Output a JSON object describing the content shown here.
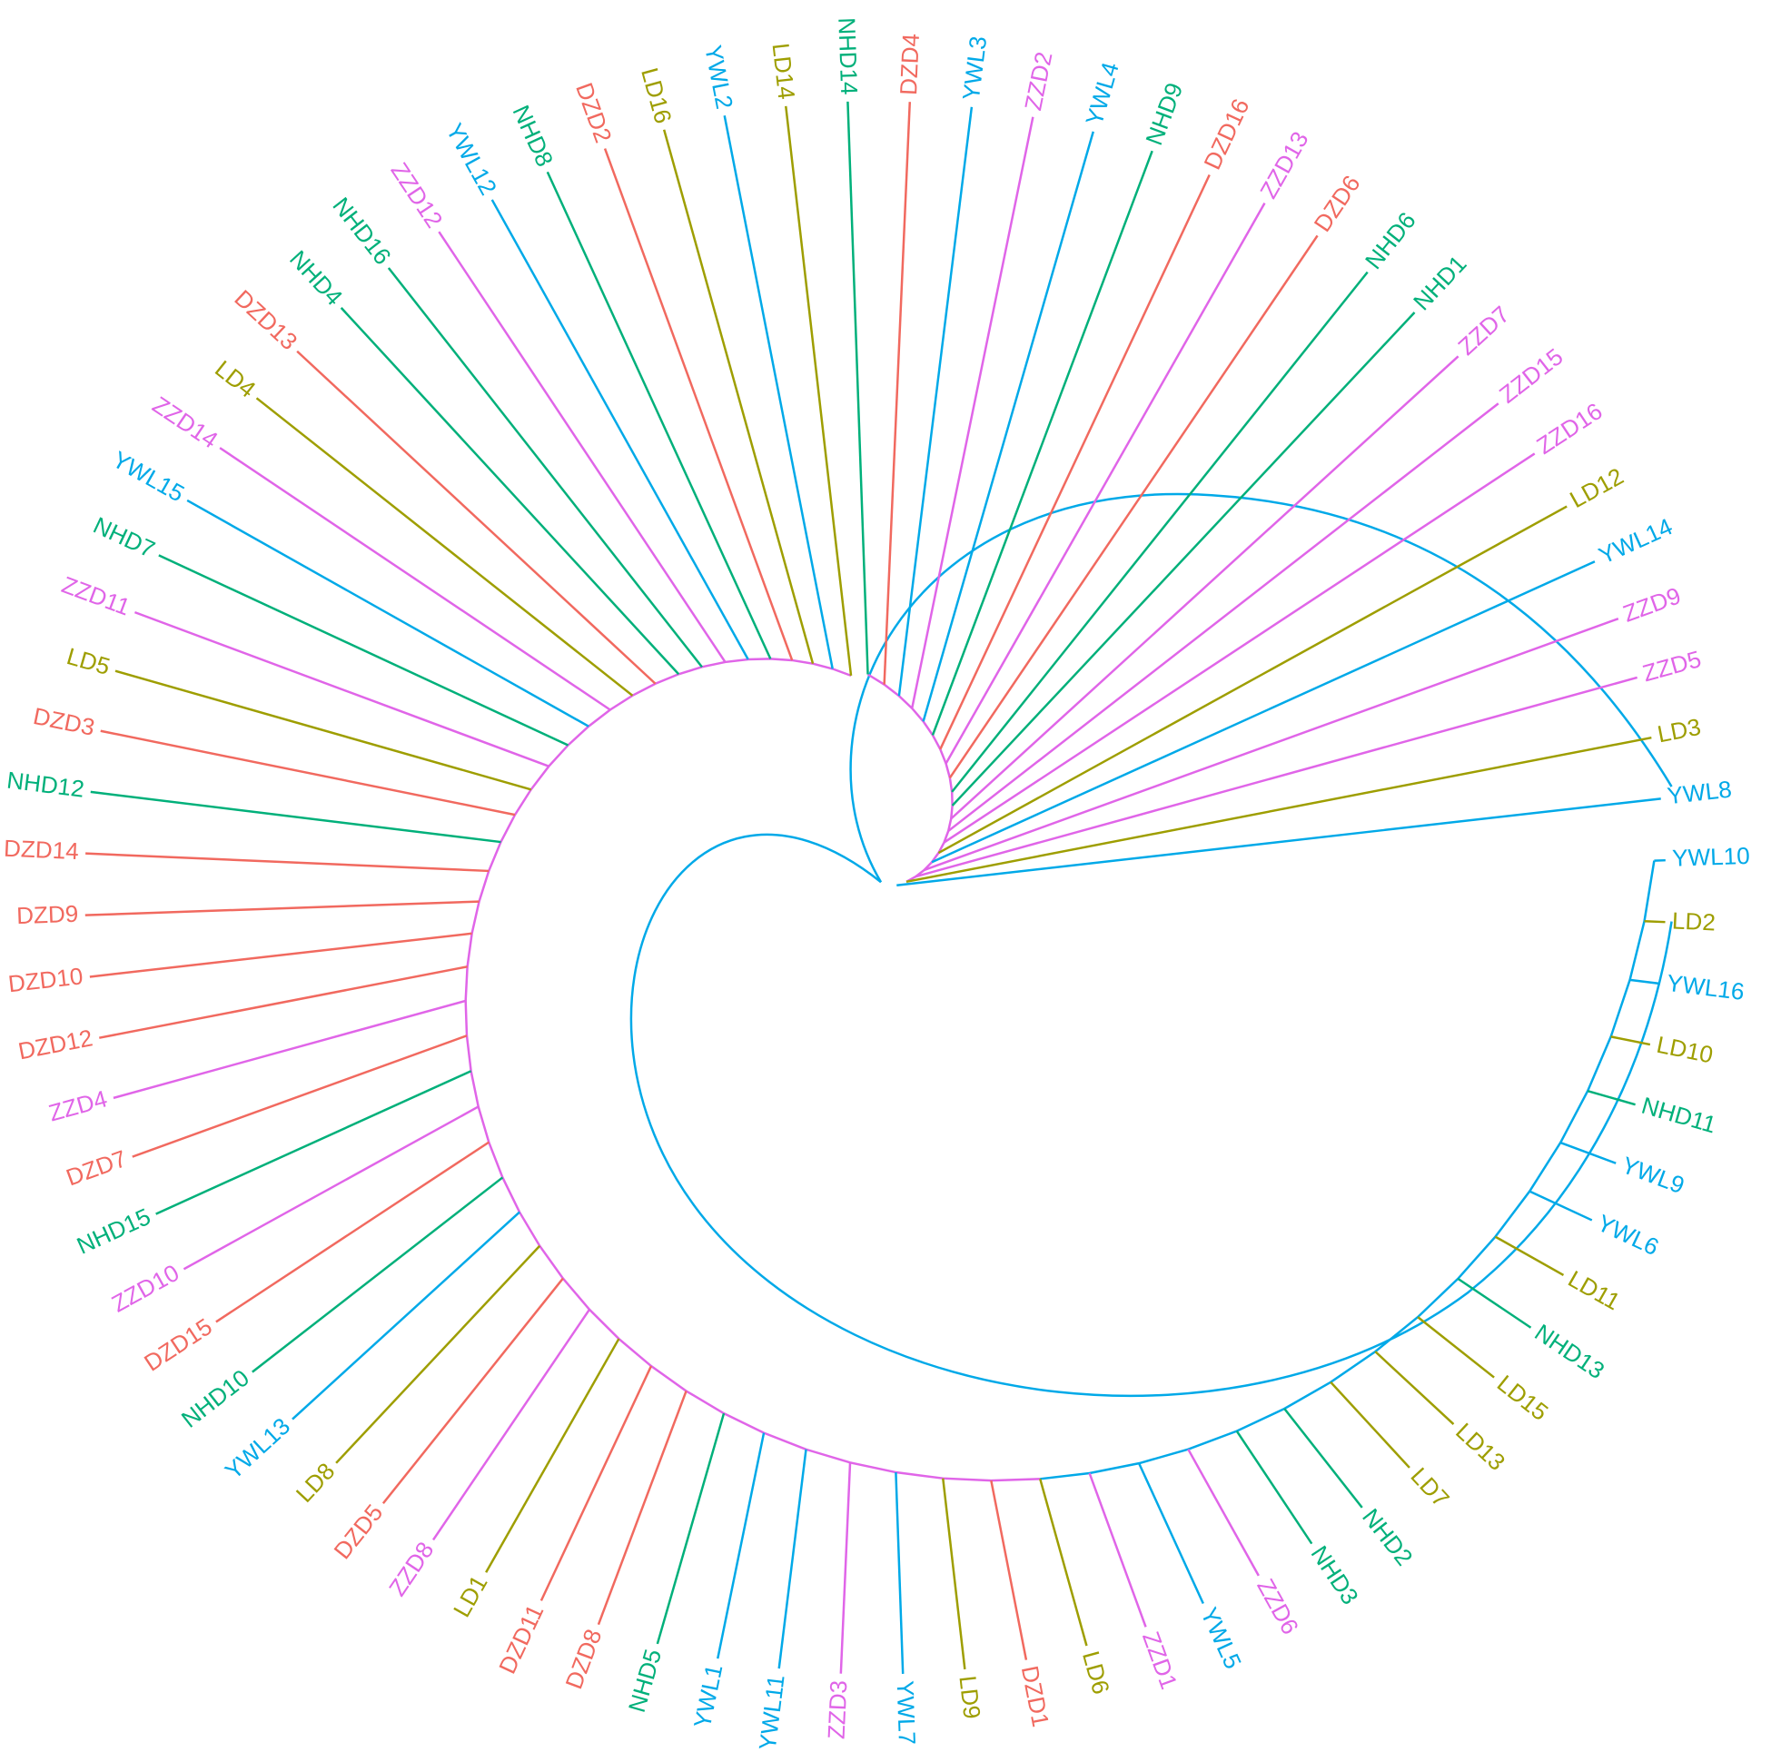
{
  "leaves": [
    {
      "label": "NHD14",
      "color": "#00B07A"
    },
    {
      "label": "DZD4",
      "color": "#F1695F"
    },
    {
      "label": "YWL3",
      "color": "#00A9E8"
    },
    {
      "label": "ZZD2",
      "color": "#E065E8"
    },
    {
      "label": "YWL4",
      "color": "#00A9E8"
    },
    {
      "label": "NHD9",
      "color": "#00B07A"
    },
    {
      "label": "DZD16",
      "color": "#F1695F"
    },
    {
      "label": "ZZD13",
      "color": "#E065E8"
    },
    {
      "label": "DZD6",
      "color": "#F1695F"
    },
    {
      "label": "NHD6",
      "color": "#00B07A"
    },
    {
      "label": "NHD1",
      "color": "#00B07A"
    },
    {
      "label": "ZZD7",
      "color": "#E065E8"
    },
    {
      "label": "ZZD15",
      "color": "#E065E8"
    },
    {
      "label": "ZZD16",
      "color": "#E065E8"
    },
    {
      "label": "LD12",
      "color": "#9E9E00"
    },
    {
      "label": "YWL14",
      "color": "#00A9E8"
    },
    {
      "label": "ZZD9",
      "color": "#E065E8"
    },
    {
      "label": "ZZD5",
      "color": "#E065E8"
    },
    {
      "label": "LD3",
      "color": "#9E9E00"
    },
    {
      "label": "YWL8",
      "color": "#00A9E8"
    },
    {
      "label": "YWL10",
      "color": "#00A9E8"
    },
    {
      "label": "LD2",
      "color": "#9E9E00"
    },
    {
      "label": "YWL16",
      "color": "#00A9E8"
    },
    {
      "label": "LD10",
      "color": "#9E9E00"
    },
    {
      "label": "NHD11",
      "color": "#00B07A"
    },
    {
      "label": "YWL9",
      "color": "#00A9E8"
    },
    {
      "label": "YWL6",
      "color": "#00A9E8"
    },
    {
      "label": "LD11",
      "color": "#9E9E00"
    },
    {
      "label": "NHD13",
      "color": "#00B07A"
    },
    {
      "label": "LD15",
      "color": "#9E9E00"
    },
    {
      "label": "LD13",
      "color": "#9E9E00"
    },
    {
      "label": "LD7",
      "color": "#9E9E00"
    },
    {
      "label": "NHD2",
      "color": "#00B07A"
    },
    {
      "label": "NHD3",
      "color": "#00B07A"
    },
    {
      "label": "ZZD6",
      "color": "#E065E8"
    },
    {
      "label": "YWL5",
      "color": "#00A9E8"
    },
    {
      "label": "ZZD1",
      "color": "#E065E8"
    },
    {
      "label": "LD6",
      "color": "#9E9E00"
    },
    {
      "label": "DZD1",
      "color": "#F1695F"
    },
    {
      "label": "LD9",
      "color": "#9E9E00"
    },
    {
      "label": "YWL7",
      "color": "#00A9E8"
    },
    {
      "label": "ZZD3",
      "color": "#E065E8"
    },
    {
      "label": "YWL11",
      "color": "#00A9E8"
    },
    {
      "label": "YWL1",
      "color": "#00A9E8"
    },
    {
      "label": "NHD5",
      "color": "#00B07A"
    },
    {
      "label": "DZD8",
      "color": "#F1695F"
    },
    {
      "label": "DZD11",
      "color": "#F1695F"
    },
    {
      "label": "LD1",
      "color": "#9E9E00"
    },
    {
      "label": "ZZD8",
      "color": "#E065E8"
    },
    {
      "label": "DZD5",
      "color": "#F1695F"
    },
    {
      "label": "LD8",
      "color": "#9E9E00"
    },
    {
      "label": "YWL13",
      "color": "#00A9E8"
    },
    {
      "label": "NHD10",
      "color": "#00B07A"
    },
    {
      "label": "DZD15",
      "color": "#F1695F"
    },
    {
      "label": "ZZD10",
      "color": "#E065E8"
    },
    {
      "label": "NHD15",
      "color": "#00B07A"
    },
    {
      "label": "DZD7",
      "color": "#F1695F"
    },
    {
      "label": "ZZD4",
      "color": "#E065E8"
    },
    {
      "label": "DZD12",
      "color": "#F1695F"
    },
    {
      "label": "DZD10",
      "color": "#F1695F"
    },
    {
      "label": "DZD9",
      "color": "#F1695F"
    },
    {
      "label": "DZD14",
      "color": "#F1695F"
    },
    {
      "label": "NHD12",
      "color": "#00B07A"
    },
    {
      "label": "DZD3",
      "color": "#F1695F"
    },
    {
      "label": "LD5",
      "color": "#9E9E00"
    },
    {
      "label": "ZZD11",
      "color": "#E065E8"
    },
    {
      "label": "NHD7",
      "color": "#00B07A"
    },
    {
      "label": "YWL15",
      "color": "#00A9E8"
    },
    {
      "label": "ZZD14",
      "color": "#E065E8"
    },
    {
      "label": "LD4",
      "color": "#9E9E00"
    },
    {
      "label": "DZD13",
      "color": "#F1695F"
    },
    {
      "label": "NHD4",
      "color": "#00B07A"
    },
    {
      "label": "NHD16",
      "color": "#00B07A"
    },
    {
      "label": "ZZD12",
      "color": "#E065E8"
    },
    {
      "label": "YWL12",
      "color": "#00A9E8"
    },
    {
      "label": "NHD8",
      "color": "#00B07A"
    },
    {
      "label": "DZD2",
      "color": "#F1695F"
    },
    {
      "label": "LD16",
      "color": "#9E9E00"
    },
    {
      "label": "YWL2",
      "color": "#00A9E8"
    },
    {
      "label": "LD14",
      "color": "#9E9E00"
    }
  ]
}
